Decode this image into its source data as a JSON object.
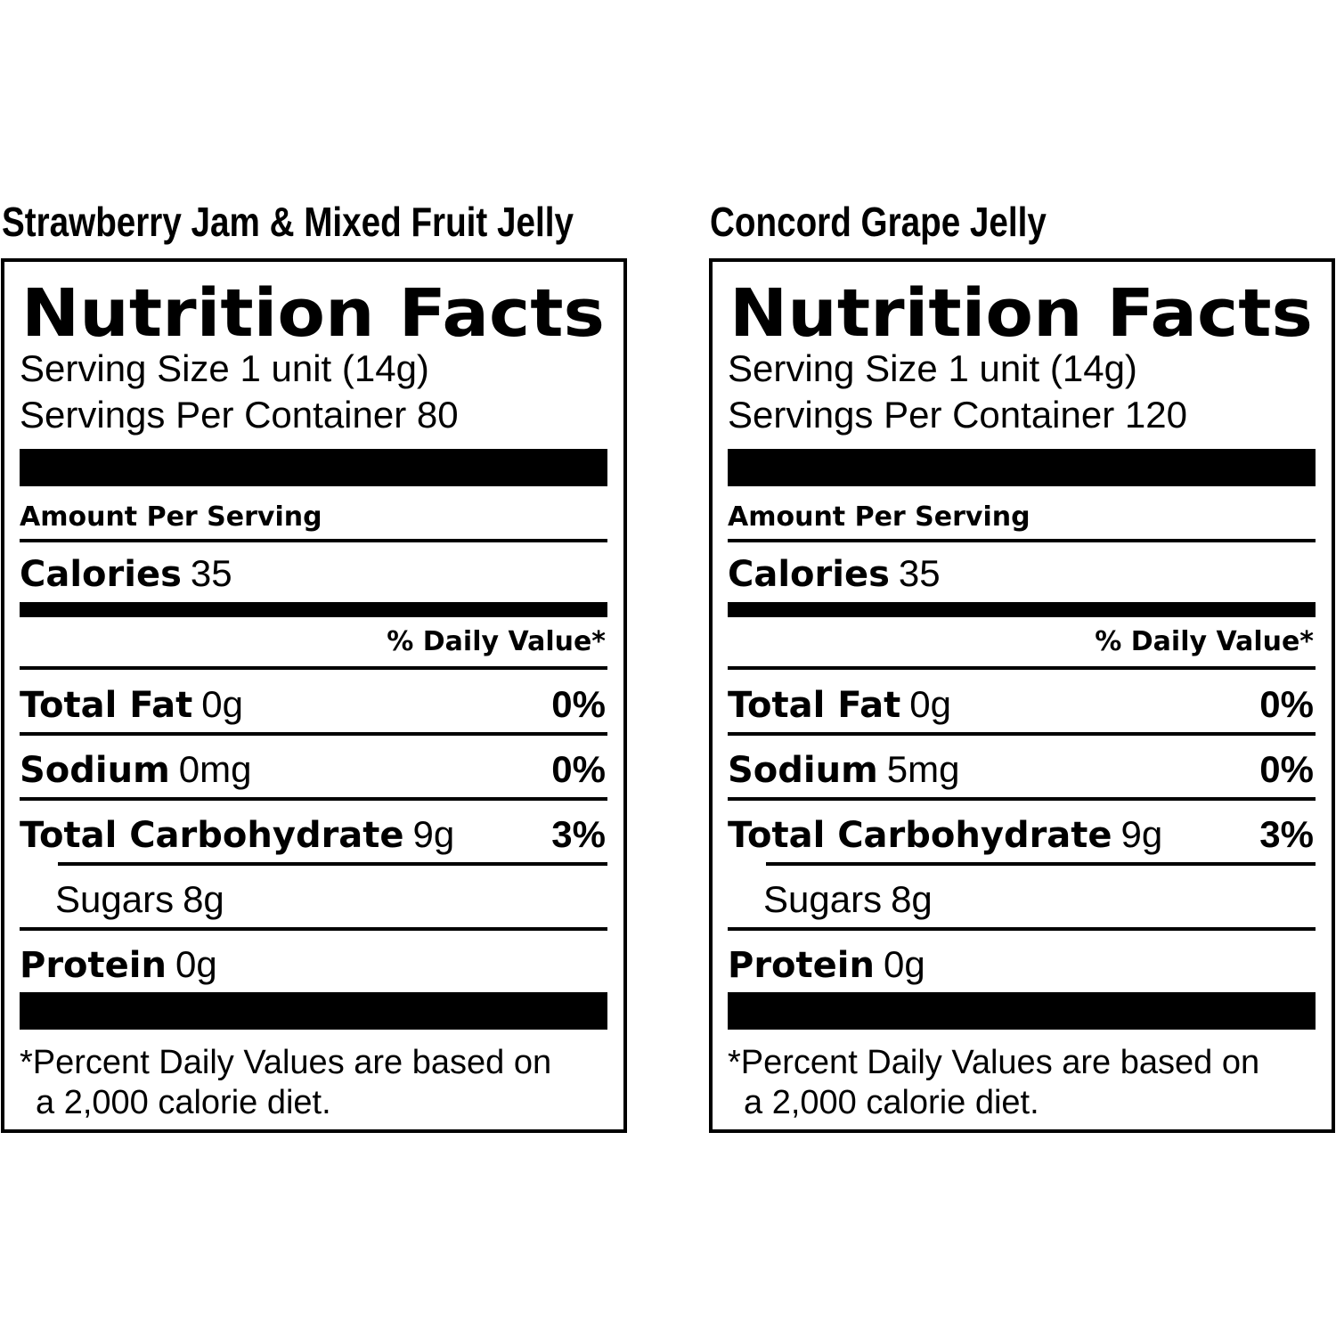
{
  "labels": [
    {
      "product": "Strawberry Jam & Mixed Fruit Jelly",
      "title": "Nutrition Facts",
      "serving_size": "Serving Size 1 unit (14g)",
      "servings_per_container": "Servings Per Container 80",
      "amount_per_serving": "Amount Per Serving",
      "calories_label": "Calories",
      "calories_value": "35",
      "daily_value_header": "% Daily Value*",
      "rows": [
        {
          "name": "Total Fat",
          "amount": "0g",
          "dv": "0%"
        },
        {
          "name": "Sodium",
          "amount": "0mg",
          "dv": "0%"
        },
        {
          "name": "Total Carbohydrate",
          "amount": "9g",
          "dv": "3%",
          "sub": {
            "name": "Sugars",
            "amount": "8g"
          }
        },
        {
          "name": "Protein",
          "amount": "0g"
        }
      ],
      "footnote": [
        "*Percent Daily Values are based on",
        "a 2,000 calorie diet."
      ]
    },
    {
      "product": "Concord Grape Jelly",
      "title": "Nutrition Facts",
      "serving_size": "Serving Size 1 unit (14g)",
      "servings_per_container": "Servings Per Container 120",
      "amount_per_serving": "Amount Per Serving",
      "calories_label": "Calories",
      "calories_value": "35",
      "daily_value_header": "% Daily Value*",
      "rows": [
        {
          "name": "Total Fat",
          "amount": "0g",
          "dv": "0%"
        },
        {
          "name": "Sodium",
          "amount": "5mg",
          "dv": "0%"
        },
        {
          "name": "Total Carbohydrate",
          "amount": "9g",
          "dv": "3%",
          "sub": {
            "name": "Sugars",
            "amount": "8g"
          }
        },
        {
          "name": "Protein",
          "amount": "0g"
        }
      ],
      "footnote": [
        "*Percent Daily Values are based on",
        "a 2,000 calorie diet."
      ]
    }
  ]
}
